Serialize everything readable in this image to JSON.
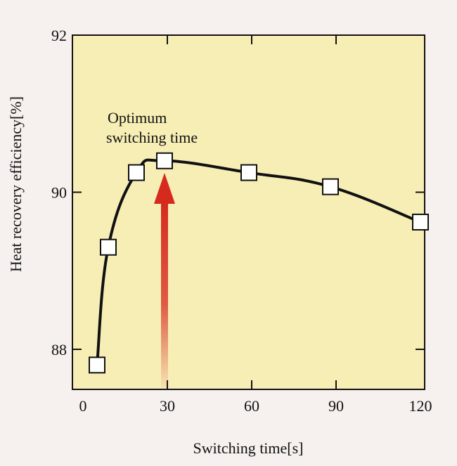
{
  "chart_data": {
    "type": "line",
    "title": "",
    "xlabel": "Switching time[s]",
    "ylabel": "Heat recovery efficiency[%]",
    "xlim": [
      0,
      120
    ],
    "ylim": [
      87.5,
      92
    ],
    "x_ticks": [
      0,
      30,
      60,
      90,
      120
    ],
    "y_ticks": [
      88,
      90,
      92
    ],
    "x_tick_labels": [
      "0",
      "30",
      "60",
      "90",
      "120"
    ],
    "y_tick_labels": [
      "88",
      "90",
      "92"
    ],
    "grid": false,
    "series": [
      {
        "x": [
          5,
          9,
          19,
          29,
          59,
          88,
          120
        ],
        "y": [
          87.8,
          89.3,
          90.25,
          90.4,
          90.25,
          90.07,
          89.62
        ]
      }
    ],
    "annotation": {
      "text_line1": "Optimum",
      "text_line2": "switching time",
      "arrow_x": 29
    },
    "colors": {
      "plot_background": "#f7eeb6",
      "page_background": "#f6f1ee",
      "line": "#111111",
      "marker_fill": "#ffffff",
      "arrow": "#d62a1e"
    }
  }
}
